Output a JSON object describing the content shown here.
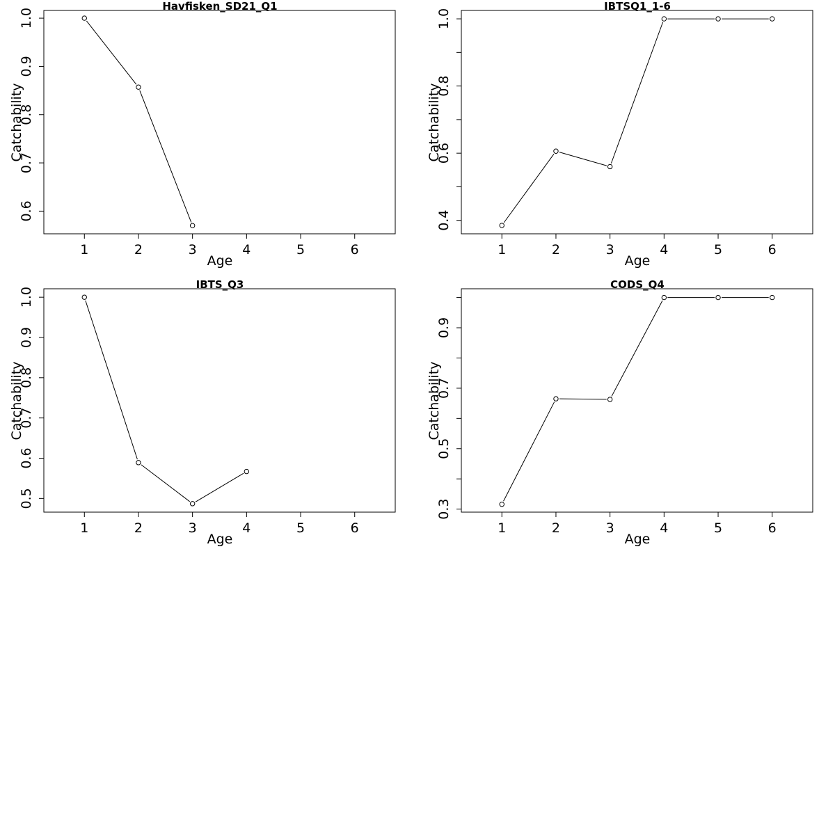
{
  "chart_data": [
    {
      "type": "line",
      "title": "Havfisken_SD21_Q1",
      "xlabel": "Age",
      "ylabel": "Catchability",
      "x_ticks": [
        1,
        2,
        3,
        4,
        5,
        6
      ],
      "y_ticks": [
        0.6,
        0.7,
        0.8,
        0.9,
        1.0
      ],
      "y_tick_labels": [
        "0.6",
        "0.7",
        "0.8",
        "0.9",
        "1.0"
      ],
      "xlim": [
        0.25,
        6.75
      ],
      "ylim": [
        0.553,
        1.016
      ],
      "x": [
        1,
        2,
        3
      ],
      "values": [
        1.0,
        0.857,
        0.57
      ]
    },
    {
      "type": "line",
      "title": "IBTSQ1_1-6",
      "xlabel": "Age",
      "ylabel": "Catchability",
      "x_ticks": [
        1,
        2,
        3,
        4,
        5,
        6
      ],
      "y_ticks": [
        0.4,
        0.5,
        0.6,
        0.7,
        0.8,
        0.9,
        1.0
      ],
      "y_tick_labels": [
        "0.4",
        "",
        "0.6",
        "",
        "0.8",
        "",
        "1.0"
      ],
      "xlim": [
        0.25,
        6.75
      ],
      "ylim": [
        0.36,
        1.025
      ],
      "x": [
        1,
        2,
        3,
        4,
        5,
        6
      ],
      "values": [
        0.385,
        0.606,
        0.56,
        1.0,
        1.0,
        1.0
      ]
    },
    {
      "type": "line",
      "title": "IBTS_Q3",
      "xlabel": "Age",
      "ylabel": "Catchability",
      "x_ticks": [
        1,
        2,
        3,
        4,
        5,
        6
      ],
      "y_ticks": [
        0.5,
        0.6,
        0.7,
        0.8,
        0.9,
        1.0
      ],
      "y_tick_labels": [
        "0.5",
        "0.6",
        "0.7",
        "0.8",
        "0.9",
        "1.0"
      ],
      "xlim": [
        0.25,
        6.75
      ],
      "ylim": [
        0.466,
        1.021
      ],
      "x": [
        1,
        2,
        3,
        4
      ],
      "values": [
        1.0,
        0.589,
        0.487,
        0.567
      ]
    },
    {
      "type": "line",
      "title": "CODS_Q4",
      "xlabel": "Age",
      "ylabel": "Catchability",
      "x_ticks": [
        1,
        2,
        3,
        4,
        5,
        6
      ],
      "y_ticks": [
        0.3,
        0.4,
        0.5,
        0.6,
        0.7,
        0.8,
        0.9,
        1.0
      ],
      "y_tick_labels": [
        "0.3",
        "",
        "0.5",
        "",
        "0.7",
        "",
        "0.9",
        ""
      ],
      "xlim": [
        0.25,
        6.75
      ],
      "ylim": [
        0.29,
        1.029
      ],
      "x": [
        1,
        2,
        3,
        4,
        5,
        6
      ],
      "values": [
        0.316,
        0.665,
        0.663,
        1.0,
        1.0,
        1.0
      ]
    }
  ]
}
